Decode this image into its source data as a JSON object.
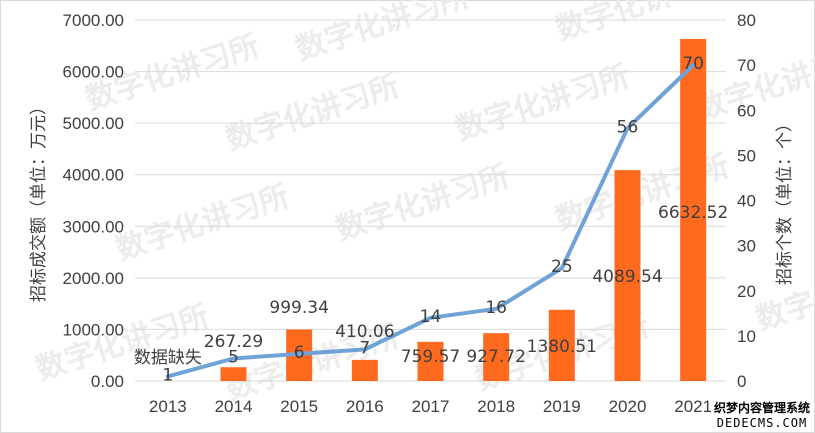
{
  "chart_data": {
    "type": "bar+line",
    "categories": [
      "2013",
      "2014",
      "2015",
      "2016",
      "2017",
      "2018",
      "2019",
      "2020",
      "2021"
    ],
    "series": [
      {
        "name": "",
        "type": "bar",
        "axis": "left",
        "color": "#ff6a1f",
        "values": [
          null,
          267.29,
          999.34,
          410.06,
          759.57,
          927.72,
          1380.51,
          4089.54,
          6632.52
        ],
        "labels": [
          "数据缺失",
          "267.29",
          "999.34",
          "410.06",
          "759.57",
          "927.72",
          "1380.51",
          "4089.54",
          "6632.52"
        ]
      },
      {
        "name": "",
        "type": "line",
        "axis": "right",
        "color": "#6fa2d6",
        "values": [
          1,
          5,
          6,
          7,
          14,
          16,
          25,
          56,
          70
        ],
        "labels": [
          "1",
          "5",
          "6",
          "7",
          "14",
          "16",
          "25",
          "56",
          "70"
        ]
      }
    ],
    "y_left": {
      "label": "招标成交额（单位：万元）",
      "min": 0,
      "max": 7000,
      "ticks": [
        "0.00",
        "1000.00",
        "2000.00",
        "3000.00",
        "4000.00",
        "5000.00",
        "6000.00",
        "7000.00"
      ]
    },
    "y_right": {
      "label": "招标个数（单位：个）",
      "min": 0,
      "max": 80,
      "ticks": [
        "0",
        "10",
        "20",
        "30",
        "40",
        "50",
        "60",
        "70",
        "80"
      ]
    },
    "grid": true,
    "legend": "none"
  },
  "watermark": "数字化讲习所",
  "logo": {
    "line1": "织梦内容管理系统",
    "line2": "DEDECMS.COM"
  }
}
